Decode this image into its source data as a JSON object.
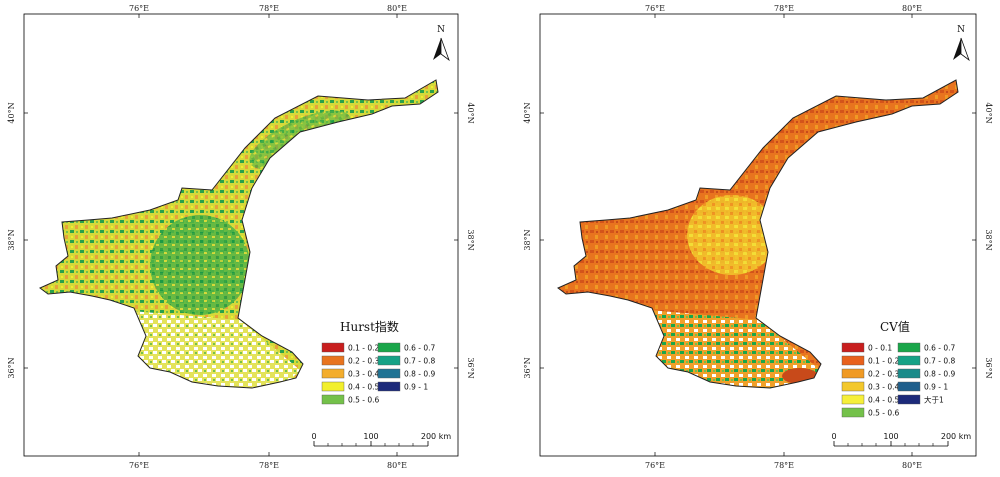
{
  "maps": [
    {
      "legend": {
        "title": "Hurst指数",
        "items": [
          {
            "label": "0.1 - 0.2",
            "color": "#c81e1e"
          },
          {
            "label": "0.2 - 0.3",
            "color": "#e8741f"
          },
          {
            "label": "0.3 - 0.4",
            "color": "#f3ad2d"
          },
          {
            "label": "0.4 - 0.5",
            "color": "#f2ef2c"
          },
          {
            "label": "0.5 - 0.6",
            "color": "#74c14a"
          },
          {
            "label": "0.6 - 0.7",
            "color": "#1aa64a"
          },
          {
            "label": "0.7 - 0.8",
            "color": "#16a286"
          },
          {
            "label": "0.8 - 0.9",
            "color": "#1f7394"
          },
          {
            "label": "0.9 - 1",
            "color": "#1c2a7a"
          }
        ]
      },
      "colors": {
        "base": "#d9dc3a",
        "hi": "#2aa24a",
        "lo": "#e9a23a",
        "white": "#ffffff"
      }
    },
    {
      "legend": {
        "title": "CV值",
        "items": [
          {
            "label": "0 - 0.1",
            "color": "#c81e1e"
          },
          {
            "label": "0.1 - 0.2",
            "color": "#e8611d"
          },
          {
            "label": "0.2 - 0.3",
            "color": "#f09a24"
          },
          {
            "label": "0.3 - 0.4",
            "color": "#f3c82c"
          },
          {
            "label": "0.4 - 0.5",
            "color": "#f5ef3a"
          },
          {
            "label": "0.5 - 0.6",
            "color": "#74c14a"
          },
          {
            "label": "0.6 - 0.7",
            "color": "#1aa64a"
          },
          {
            "label": "0.7 - 0.8",
            "color": "#16a286"
          },
          {
            "label": "0.8 - 0.9",
            "color": "#1a8b8a"
          },
          {
            "label": "0.9 - 1",
            "color": "#1f5f8c"
          },
          {
            "label": "大于1",
            "color": "#1c2a7a"
          }
        ]
      },
      "colors": {
        "base": "#e8741f",
        "hi": "#f3c82c",
        "lo": "#c84a1a",
        "white": "#ffffff"
      }
    }
  ],
  "grid": {
    "lon_labels": [
      "76°E",
      "78°E",
      "80°E"
    ],
    "lat_labels": [
      "40°N",
      "38°N",
      "36°N"
    ]
  },
  "north_arrow": {
    "label": "N"
  },
  "scale_bar": {
    "labels": [
      "0",
      "100",
      "200 km"
    ]
  }
}
